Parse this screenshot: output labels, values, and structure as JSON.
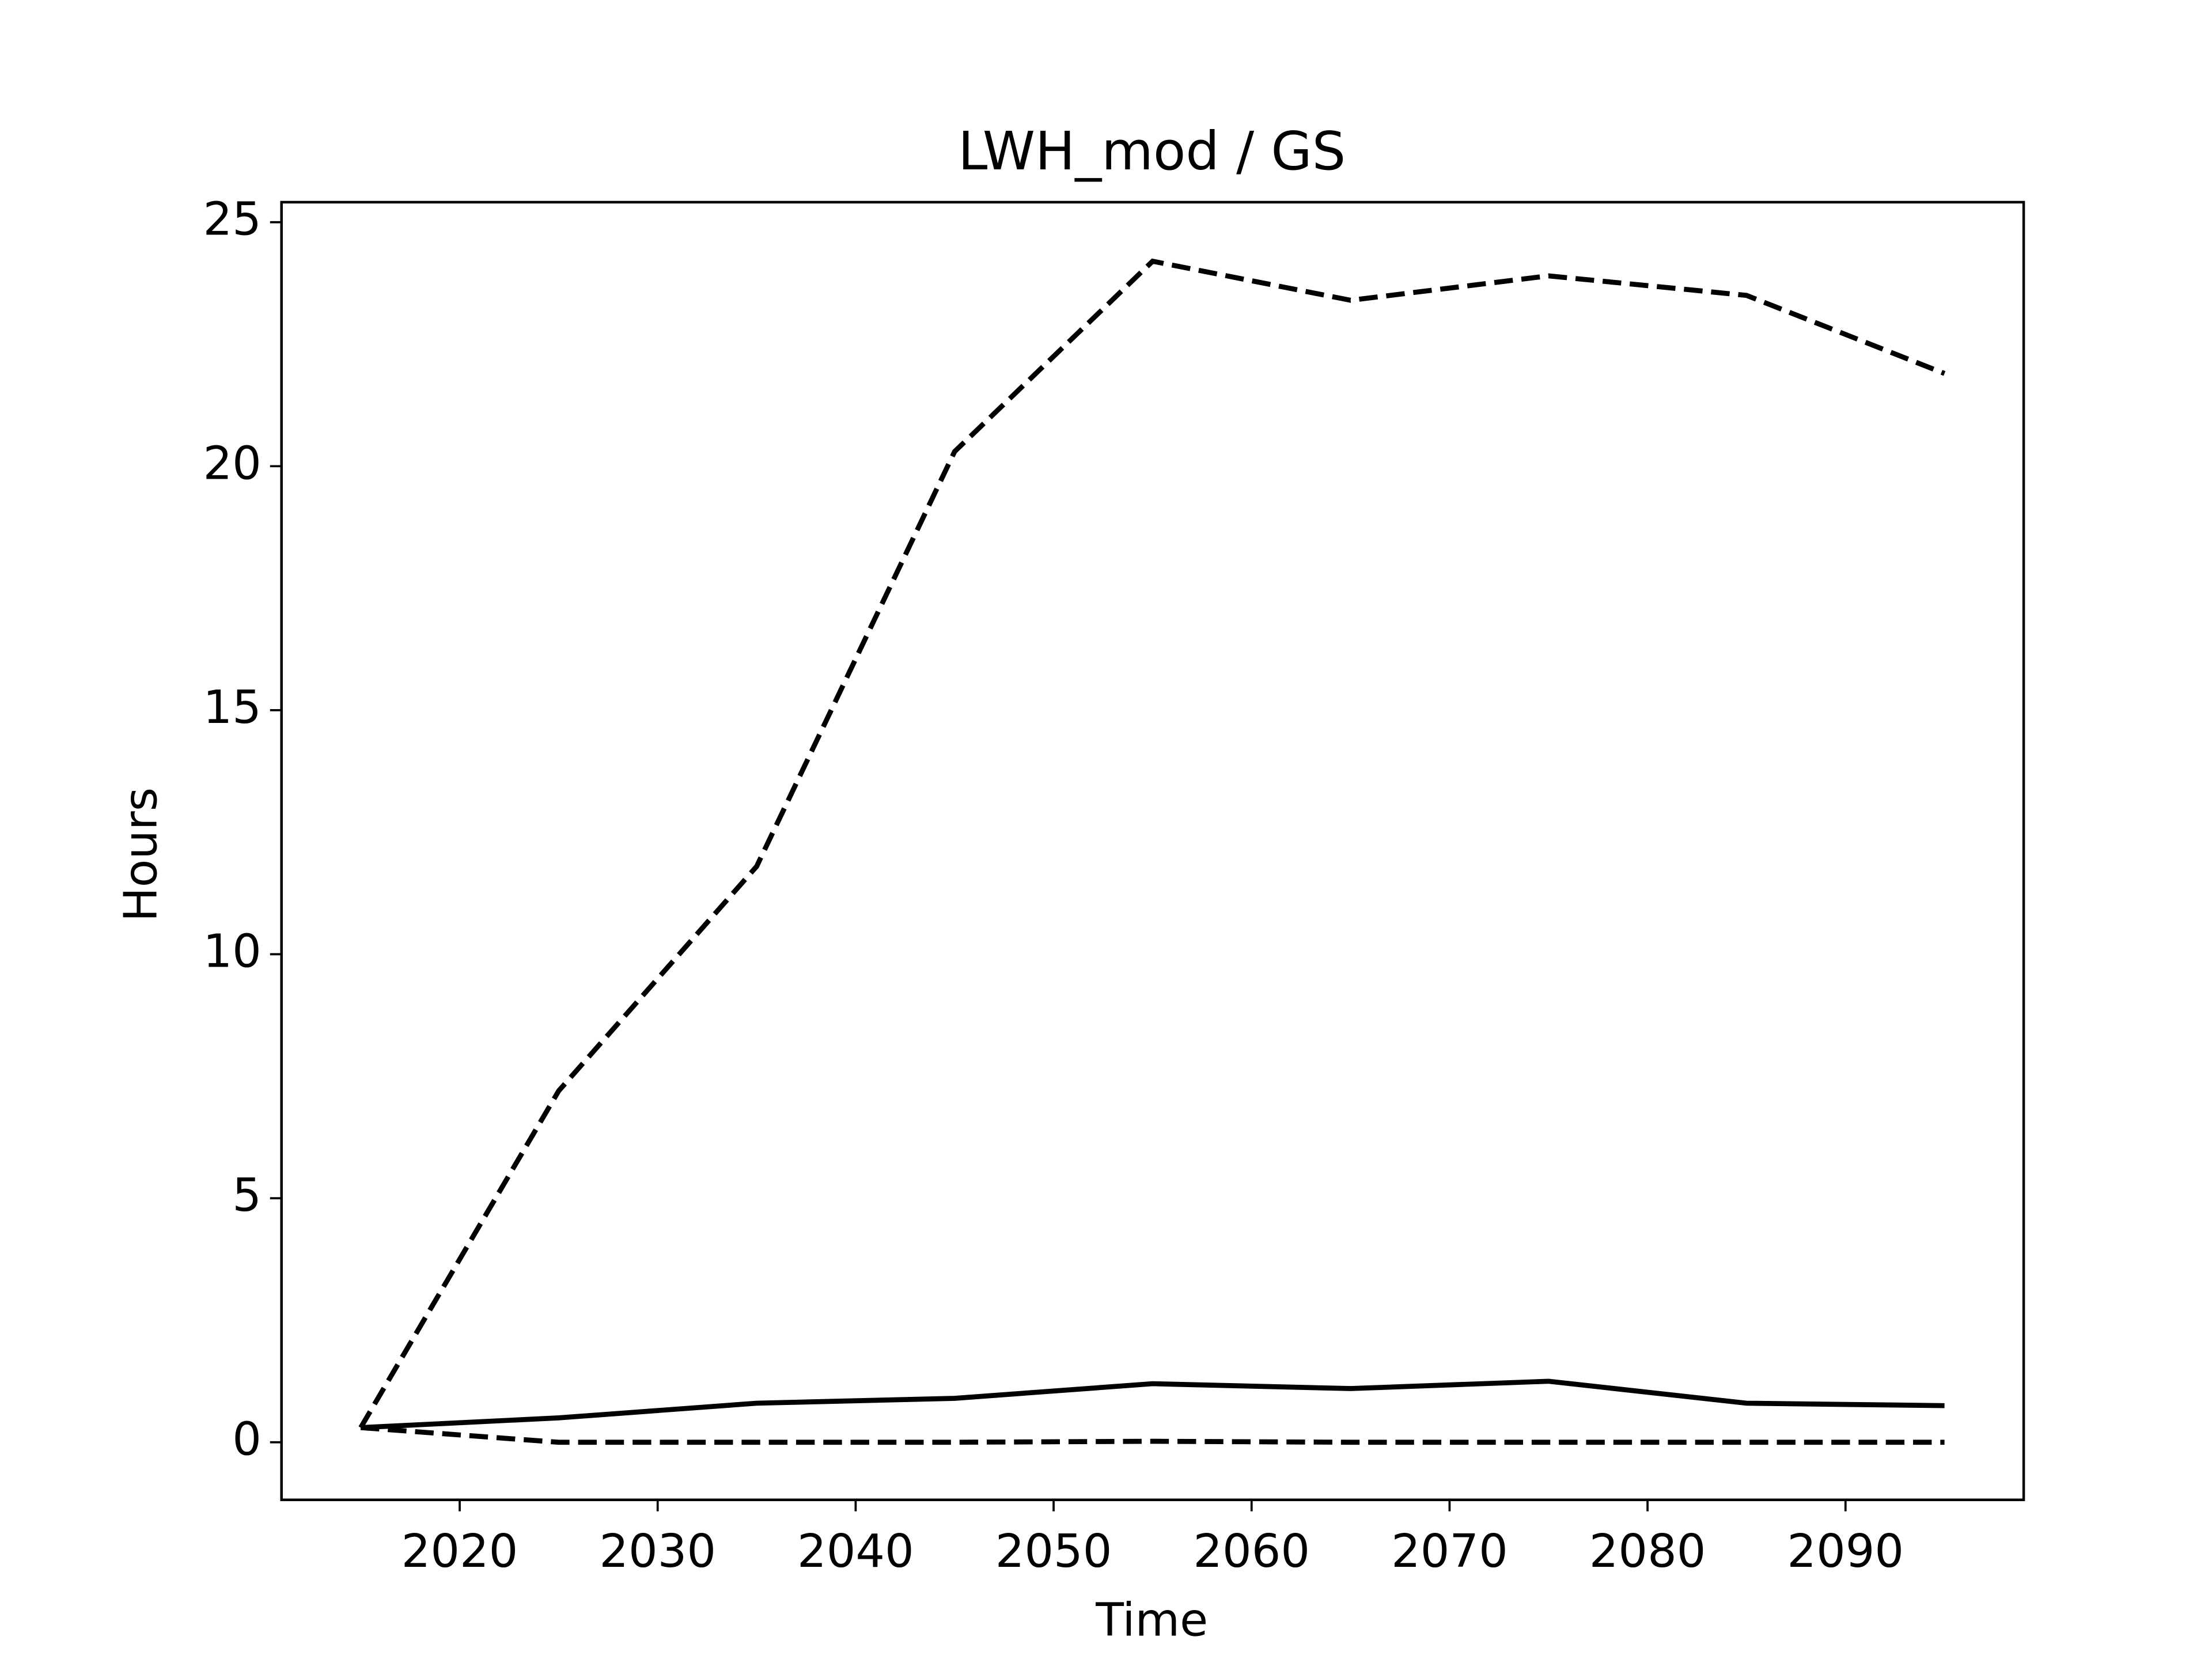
{
  "chart_data": {
    "type": "line",
    "title": "LWH_mod / GS",
    "xlabel": "Time",
    "ylabel": "Hours",
    "x": [
      2015,
      2025,
      2035,
      2045,
      2055,
      2065,
      2075,
      2085,
      2095
    ],
    "series": [
      {
        "color": "#000000",
        "linestyle": "dashed",
        "values": [
          0.3,
          7.2,
          11.8,
          20.3,
          24.2,
          23.4,
          23.9,
          23.5,
          21.9
        ]
      },
      {
        "color": "#000000",
        "linestyle": "solid",
        "values": [
          0.3,
          0.5,
          0.8,
          0.9,
          1.2,
          1.1,
          1.25,
          0.8,
          0.75
        ]
      },
      {
        "color": "#000000",
        "linestyle": "dashed",
        "values": [
          0.3,
          0.0,
          0.0,
          0.0,
          0.02,
          0.0,
          0.0,
          0.0,
          0.0
        ]
      }
    ],
    "xlim": [
      2011,
      2099
    ],
    "xticks": [
      2020,
      2030,
      2040,
      2050,
      2060,
      2070,
      2080,
      2090
    ],
    "ylim": [
      -1.18,
      25.41
    ],
    "yticks": [
      0,
      5,
      10,
      15,
      20,
      25
    ],
    "grid": false
  }
}
